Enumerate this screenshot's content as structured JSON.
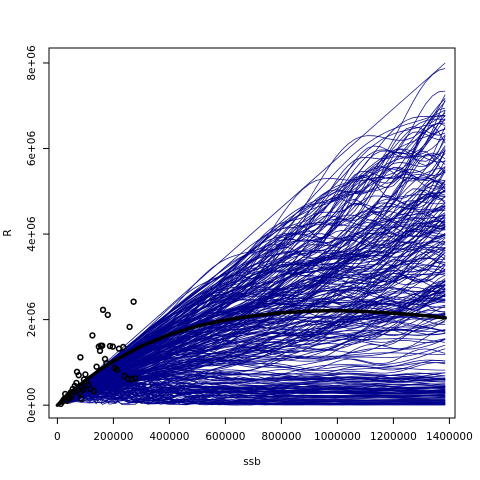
{
  "chart_data": {
    "type": "scatter",
    "xlabel": "ssb",
    "ylabel": "R",
    "xlim": [
      -30000,
      1420000
    ],
    "ylim": [
      -300000,
      8350000
    ],
    "x_ticks": [
      {
        "value": 0,
        "label": "0"
      },
      {
        "value": 200000,
        "label": "200000"
      },
      {
        "value": 400000,
        "label": "400000"
      },
      {
        "value": 600000,
        "label": "600000"
      },
      {
        "value": 800000,
        "label": "800000"
      },
      {
        "value": 1000000,
        "label": "1000000"
      },
      {
        "value": 1200000,
        "label": "1200000"
      },
      {
        "value": 1400000,
        "label": "1400000"
      }
    ],
    "y_ticks": [
      {
        "value": 0,
        "label": "0e+00"
      },
      {
        "value": 2000000,
        "label": "2e+06"
      },
      {
        "value": 4000000,
        "label": "4e+06"
      },
      {
        "value": 6000000,
        "label": "6e+06"
      },
      {
        "value": 8000000,
        "label": "8e+06"
      }
    ],
    "grid": false,
    "legend": "none",
    "colors": {
      "simulations": "#00008B",
      "fit": "#000000",
      "observed": "#000000",
      "frame": "#000000"
    },
    "observed_points": [
      [
        12000,
        30000
      ],
      [
        18000,
        80000
      ],
      [
        22000,
        120000
      ],
      [
        25000,
        150000
      ],
      [
        28000,
        260000
      ],
      [
        32000,
        180000
      ],
      [
        35000,
        100000
      ],
      [
        38000,
        220000
      ],
      [
        42000,
        200000
      ],
      [
        45000,
        160000
      ],
      [
        48000,
        300000
      ],
      [
        52000,
        230000
      ],
      [
        55000,
        380000
      ],
      [
        60000,
        320000
      ],
      [
        62000,
        450000
      ],
      [
        68000,
        520000
      ],
      [
        70000,
        780000
      ],
      [
        72000,
        350000
      ],
      [
        76000,
        700000
      ],
      [
        80000,
        280000
      ],
      [
        82000,
        1120000
      ],
      [
        85000,
        150000
      ],
      [
        88000,
        420000
      ],
      [
        92000,
        360000
      ],
      [
        95000,
        600000
      ],
      [
        100000,
        720000
      ],
      [
        105000,
        550000
      ],
      [
        110000,
        470000
      ],
      [
        118000,
        380000
      ],
      [
        125000,
        1630000
      ],
      [
        130000,
        330000
      ],
      [
        140000,
        900000
      ],
      [
        148000,
        1370000
      ],
      [
        152000,
        1270000
      ],
      [
        155000,
        1390000
      ],
      [
        160000,
        1390000
      ],
      [
        163000,
        2230000
      ],
      [
        170000,
        1080000
      ],
      [
        175000,
        980000
      ],
      [
        180000,
        2110000
      ],
      [
        188000,
        1380000
      ],
      [
        198000,
        1370000
      ],
      [
        205000,
        870000
      ],
      [
        213000,
        830000
      ],
      [
        220000,
        1320000
      ],
      [
        235000,
        1360000
      ],
      [
        240000,
        680000
      ],
      [
        252000,
        620000
      ],
      [
        258000,
        1830000
      ],
      [
        265000,
        600000
      ],
      [
        272000,
        2420000
      ],
      [
        278000,
        630000
      ]
    ],
    "fit_line": [
      [
        0,
        0
      ],
      [
        20000,
        130000
      ],
      [
        50000,
        310000
      ],
      [
        100000,
        580000
      ],
      [
        150000,
        820000
      ],
      [
        200000,
        1030000
      ],
      [
        300000,
        1380000
      ],
      [
        400000,
        1650000
      ],
      [
        500000,
        1850000
      ],
      [
        600000,
        1990000
      ],
      [
        700000,
        2090000
      ],
      [
        800000,
        2160000
      ],
      [
        900000,
        2200000
      ],
      [
        1000000,
        2210000
      ],
      [
        1100000,
        2190000
      ],
      [
        1200000,
        2150000
      ],
      [
        1300000,
        2100000
      ],
      [
        1385000,
        2040000
      ]
    ],
    "simulation_lines": {
      "count": 300,
      "x_max": 1385000,
      "endpoint_range": [
        0,
        8000000
      ],
      "max_slope_line": [
        [
          0,
          0
        ],
        [
          1385000,
          8000000
        ]
      ]
    }
  }
}
